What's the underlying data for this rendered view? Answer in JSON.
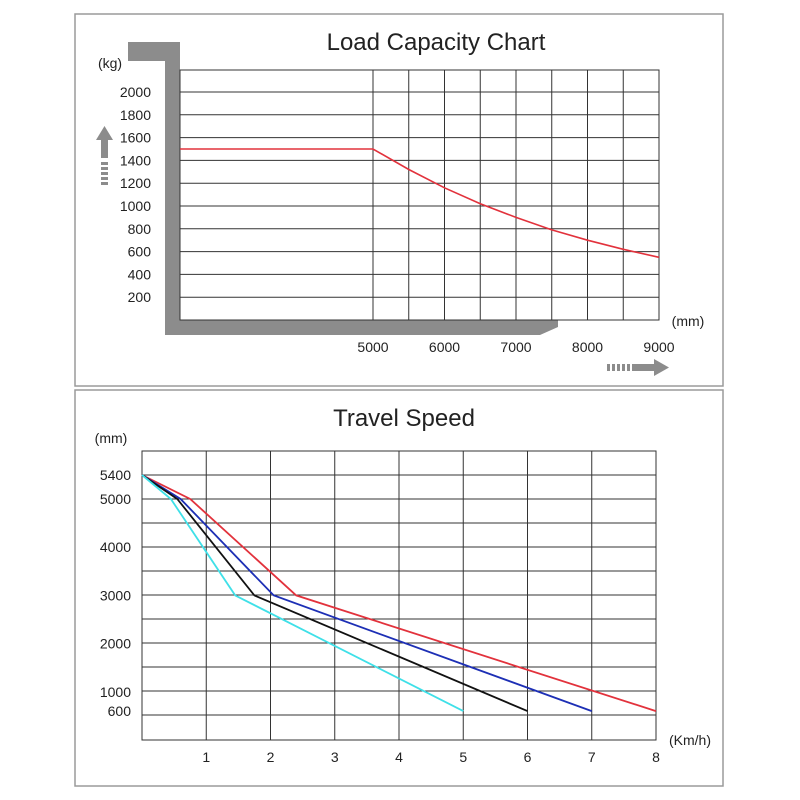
{
  "chart_data": [
    {
      "type": "line",
      "title": "Load Capacity Chart",
      "ylabel": "(kg)",
      "xlabel": "(mm)",
      "y_ticks": [
        200,
        400,
        600,
        800,
        1000,
        1200,
        1400,
        1600,
        1800,
        2000
      ],
      "x_ticks": [
        5000,
        6000,
        7000,
        8000,
        9000
      ],
      "series": [
        {
          "color": "#e2323c",
          "x": [
            2200,
            5000,
            5500,
            6000,
            6500,
            7000,
            7500,
            8000,
            8500,
            9000
          ],
          "y": [
            1500,
            1500,
            1320,
            1160,
            1020,
            900,
            790,
            700,
            620,
            550
          ]
        }
      ]
    },
    {
      "type": "line",
      "title": "Travel Speed",
      "ylabel": "(mm)",
      "xlabel": "(Km/h)",
      "y_ticks": [
        600,
        1000,
        2000,
        3000,
        4000,
        5000,
        5400
      ],
      "x_ticks": [
        1,
        2,
        3,
        4,
        5,
        6,
        7,
        8
      ],
      "series": [
        {
          "color": "#e2323c",
          "x": [
            0,
            0.75,
            2.4,
            8
          ],
          "y": [
            5400,
            5000,
            3000,
            600
          ]
        },
        {
          "color": "#1d2fb5",
          "x": [
            0,
            0.6,
            2.05,
            7
          ],
          "y": [
            5400,
            5000,
            3000,
            600
          ]
        },
        {
          "color": "#111111",
          "x": [
            0,
            0.55,
            1.75,
            6
          ],
          "y": [
            5400,
            5000,
            3000,
            600
          ]
        },
        {
          "color": "#3fe0e8",
          "x": [
            0,
            0.45,
            1.45,
            5
          ],
          "y": [
            5400,
            5000,
            3000,
            600
          ]
        }
      ]
    }
  ]
}
